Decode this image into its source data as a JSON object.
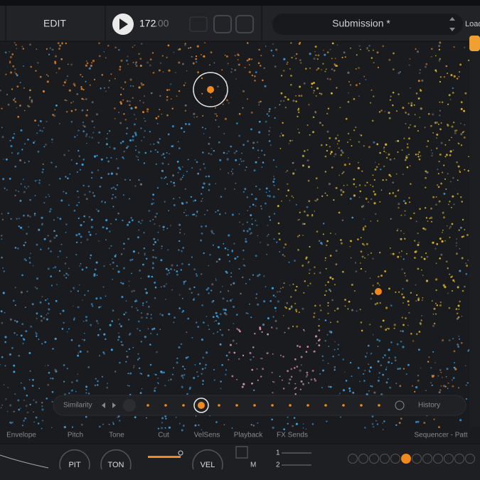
{
  "toolbar": {
    "mode": "EDIT",
    "tempo": "172",
    "tempo_decimals": ".00",
    "preset": "Submission *",
    "load": "Load"
  },
  "similarity_bar": {
    "left_label": "Similarity",
    "right_label": "History"
  },
  "tabs": [
    "Envelope",
    "Pitch",
    "Tone",
    "Cut",
    "VelSens",
    "Playback",
    "FX Sends",
    "Sequencer - Patt"
  ],
  "knobs": [
    "PIT",
    "TON",
    "VEL"
  ],
  "fx_rows": [
    "1",
    "2",
    "M"
  ]
}
